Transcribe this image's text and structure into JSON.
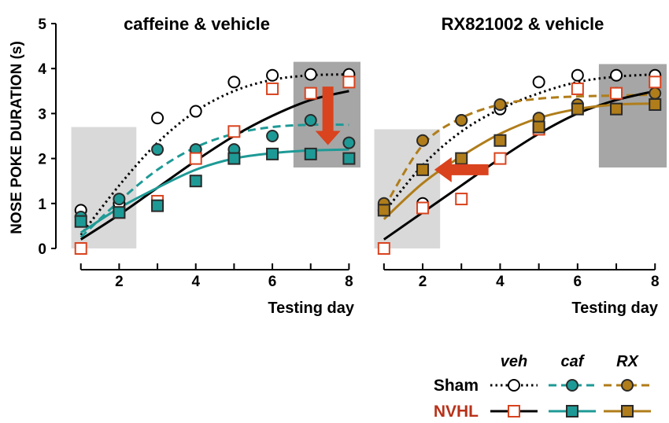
{
  "chart_data": {
    "type": "scatter",
    "ylabel": "NOSE POKE DURATION (s)",
    "ylim": [
      0,
      5
    ],
    "yticks": [
      "0",
      "1",
      "2",
      "3",
      "4",
      "5"
    ],
    "xlim": [
      0.8,
      8.3
    ],
    "xticks": [
      "2",
      "4",
      "6",
      "8"
    ],
    "x": [
      1,
      2,
      3,
      4,
      5,
      6,
      7,
      8
    ],
    "panels": [
      {
        "title": "caffeine & vehicle",
        "xlabel": "Testing day",
        "shaded_regions": [
          {
            "x": [
              0.75,
              2.45
            ],
            "y": [
              0,
              2.7
            ],
            "shade": "light"
          },
          {
            "x": [
              6.55,
              8.3
            ],
            "y": [
              1.8,
              4.15
            ],
            "shade": "dark"
          }
        ],
        "arrow": {
          "direction": "down",
          "x": 7.45,
          "from_y": 3.6,
          "to_y": 2.3,
          "color": "#d9431e"
        },
        "series": [
          {
            "name": "Sham veh",
            "marker": "open-circle",
            "line": "dotted",
            "color": "#000000",
            "values": [
              0.85,
              1.0,
              2.9,
              3.05,
              3.7,
              3.85,
              3.87,
              3.87
            ],
            "fit": [
              0.3,
              1.4,
              2.35,
              3.05,
              3.5,
              3.75,
              3.85,
              3.87
            ]
          },
          {
            "name": "Sham caf",
            "marker": "filled-circle",
            "line": "dashed",
            "color": "#1e9a96",
            "values": [
              0.7,
              1.1,
              2.2,
              2.2,
              2.2,
              2.5,
              2.85,
              2.35
            ],
            "fit": [
              0.25,
              1.05,
              1.75,
              2.25,
              2.55,
              2.7,
              2.75,
              2.75
            ]
          },
          {
            "name": "NVHL veh",
            "marker": "open-square",
            "line": "solid",
            "color": "#000000",
            "marker_color": "#d9431e",
            "values": [
              0.0,
              0.8,
              1.05,
              2.0,
              2.6,
              3.55,
              3.45,
              3.7
            ],
            "fit": [
              0.2,
              0.75,
              1.35,
              1.95,
              2.5,
              2.95,
              3.3,
              3.5
            ]
          },
          {
            "name": "NVHL caf",
            "marker": "filled-square",
            "line": "solid",
            "color": "#1e9a96",
            "values": [
              0.6,
              0.8,
              0.95,
              1.5,
              2.0,
              2.1,
              2.1,
              2.0
            ],
            "fit": [
              0.35,
              0.9,
              1.35,
              1.75,
              2.0,
              2.12,
              2.18,
              2.2
            ]
          }
        ]
      },
      {
        "title": "RX821002 & vehicle",
        "xlabel": "Testing day",
        "shaded_regions": [
          {
            "x": [
              0.75,
              2.45
            ],
            "y": [
              0,
              2.65
            ],
            "shade": "light"
          },
          {
            "x": [
              6.55,
              8.3
            ],
            "y": [
              1.8,
              4.1
            ],
            "shade": "dark"
          }
        ],
        "arrow": {
          "direction": "left",
          "y": 1.75,
          "from_x": 3.7,
          "to_x": 2.3,
          "color": "#d9431e"
        },
        "series": [
          {
            "name": "Sham veh",
            "marker": "open-circle",
            "line": "dotted",
            "color": "#000000",
            "values": [
              0.85,
              1.0,
              2.85,
              3.1,
              3.7,
              3.85,
              3.85,
              3.85
            ],
            "fit": [
              0.8,
              1.85,
              2.6,
              3.1,
              3.45,
              3.7,
              3.82,
              3.87
            ]
          },
          {
            "name": "Sham RX",
            "marker": "filled-circle",
            "line": "dashed",
            "color": "#b07d1a",
            "values": [
              1.0,
              2.4,
              2.85,
              3.2,
              2.9,
              3.2,
              3.45,
              3.45
            ],
            "fit": [
              0.9,
              2.3,
              2.9,
              3.2,
              3.33,
              3.38,
              3.4,
              3.42
            ]
          },
          {
            "name": "NVHL veh",
            "marker": "open-square",
            "line": "solid",
            "color": "#000000",
            "marker_color": "#d9431e",
            "values": [
              0.0,
              0.9,
              1.1,
              2.0,
              2.65,
              3.55,
              3.45,
              3.7
            ],
            "fit": [
              0.2,
              0.8,
              1.4,
              2.0,
              2.55,
              3.0,
              3.3,
              3.5
            ]
          },
          {
            "name": "NVHL RX",
            "marker": "filled-square",
            "line": "solid",
            "color": "#b07d1a",
            "values": [
              0.85,
              1.75,
              2.0,
              2.4,
              2.7,
              3.1,
              3.1,
              3.2
            ],
            "fit": [
              0.65,
              1.45,
              2.05,
              2.55,
              2.9,
              3.1,
              3.2,
              3.22
            ]
          }
        ]
      }
    ],
    "legend": {
      "column_headers": [
        "veh",
        "caf",
        "RX"
      ],
      "rows": [
        {
          "label": "Sham",
          "color": "#000000",
          "items": [
            "Sham veh",
            "Sham caf",
            "Sham RX"
          ]
        },
        {
          "label": "NVHL",
          "color": "#b8321a",
          "items": [
            "NVHL veh",
            "NVHL caf",
            "NVHL RX"
          ]
        }
      ]
    }
  }
}
